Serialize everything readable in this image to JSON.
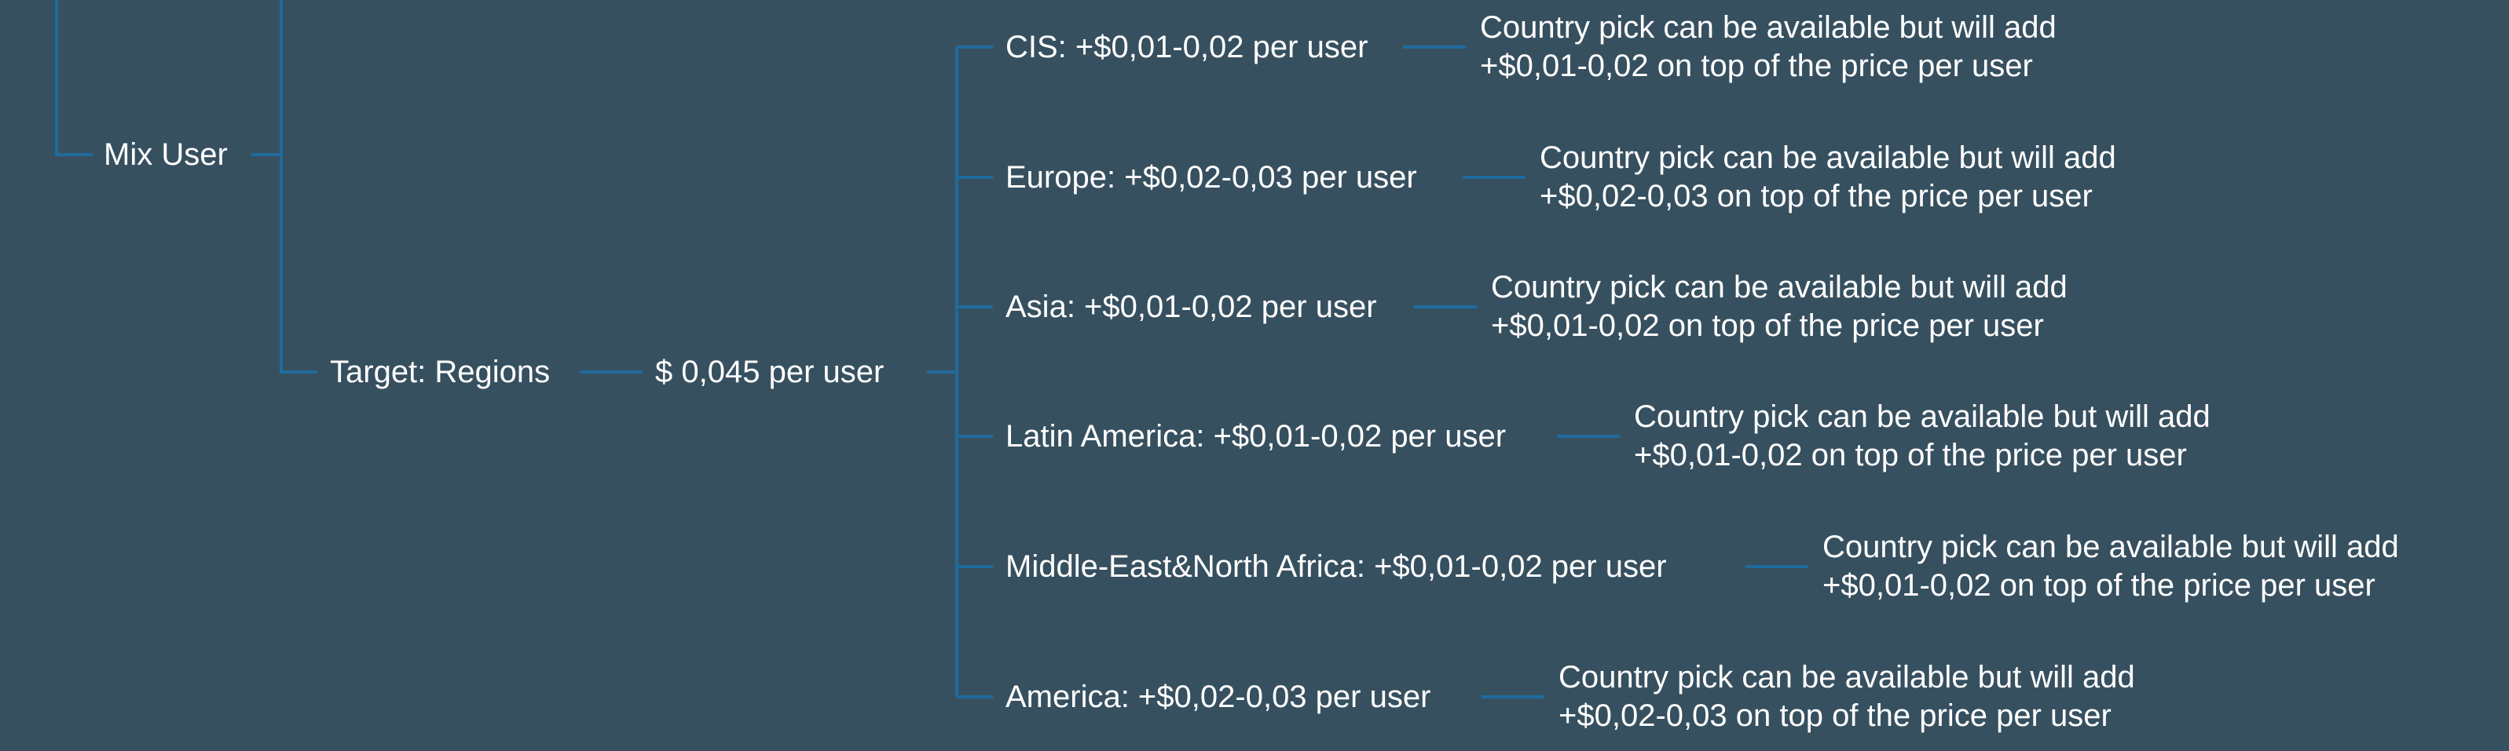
{
  "colors": {
    "background": "#37505f",
    "connector": "#1f6b9e",
    "text": "#ffffff"
  },
  "tree": {
    "mix_user": "Mix User",
    "target_regions": "Target: Regions",
    "price": "$ 0,045 per user",
    "regions": [
      {
        "label": "CIS: +$0,01-0,02 per user",
        "note_line1": "Country pick can be available but will add",
        "note_line2": "+$0,01-0,02 on top of the price per user"
      },
      {
        "label": "Europe: +$0,02-0,03 per user",
        "note_line1": "Country pick can be available but will add",
        "note_line2": "+$0,02-0,03 on top of the price per user"
      },
      {
        "label": "Asia: +$0,01-0,02 per user",
        "note_line1": "Country pick can be available but will add",
        "note_line2": "+$0,01-0,02 on top of the price per user"
      },
      {
        "label": "Latin America: +$0,01-0,02 per user",
        "note_line1": "Country pick can be available but will add",
        "note_line2": "+$0,01-0,02 on top of the price per user"
      },
      {
        "label": "Middle-East&North Africa: +$0,01-0,02 per user",
        "note_line1": "Country pick can be available but will add",
        "note_line2": "+$0,01-0,02 on top of the price per user"
      },
      {
        "label": "America: +$0,02-0,03 per user",
        "note_line1": "Country pick can be available but will add",
        "note_line2": "+$0,02-0,03 on top of the price per user"
      }
    ]
  }
}
